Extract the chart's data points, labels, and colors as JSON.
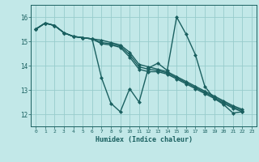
{
  "background_color": "#c2e8e8",
  "grid_color": "#98cccc",
  "line_color": "#1a6060",
  "xlabel": "Humidex (Indice chaleur)",
  "ylim": [
    11.5,
    16.5
  ],
  "xlim": [
    -0.5,
    23.5
  ],
  "yticks": [
    12,
    13,
    14,
    15,
    16
  ],
  "xtick_labels": [
    "0",
    "1",
    "2",
    "3",
    "4",
    "5",
    "6",
    "7",
    "8",
    "9",
    "10",
    "11",
    "12",
    "13",
    "14",
    "15",
    "16",
    "17",
    "18",
    "19",
    "20",
    "21",
    "22",
    "23"
  ],
  "series": [
    {
      "x": [
        0,
        1,
        2,
        3,
        4,
        5,
        6,
        7,
        8,
        9,
        10,
        11,
        12,
        13,
        14,
        15,
        16,
        17,
        18,
        19,
        20,
        21,
        22
      ],
      "y": [
        15.5,
        15.75,
        15.65,
        15.35,
        15.2,
        15.15,
        15.1,
        13.5,
        12.45,
        12.1,
        13.05,
        12.5,
        13.9,
        14.1,
        13.8,
        16.0,
        15.3,
        14.45,
        13.15,
        12.65,
        12.4,
        12.05,
        12.1
      ]
    },
    {
      "x": [
        0,
        1,
        2,
        3,
        4,
        5,
        6,
        7,
        8,
        9,
        10,
        11,
        12,
        13,
        14,
        15,
        16,
        17,
        18,
        19,
        20,
        21,
        22
      ],
      "y": [
        15.5,
        15.75,
        15.65,
        15.35,
        15.2,
        15.15,
        15.1,
        14.9,
        14.85,
        14.75,
        14.35,
        13.85,
        13.75,
        13.75,
        13.65,
        13.45,
        13.25,
        13.05,
        12.85,
        12.65,
        12.45,
        12.25,
        12.1
      ]
    },
    {
      "x": [
        0,
        1,
        2,
        3,
        4,
        5,
        6,
        7,
        8,
        9,
        10,
        11,
        12,
        13,
        14,
        15,
        16,
        17,
        18,
        19,
        20,
        21,
        22
      ],
      "y": [
        15.5,
        15.75,
        15.65,
        15.35,
        15.2,
        15.15,
        15.1,
        14.95,
        14.9,
        14.8,
        14.45,
        13.95,
        13.85,
        13.8,
        13.7,
        13.5,
        13.3,
        13.1,
        12.9,
        12.7,
        12.5,
        12.3,
        12.15
      ]
    },
    {
      "x": [
        0,
        1,
        2,
        3,
        4,
        5,
        6,
        7,
        8,
        9,
        10,
        11,
        12,
        13,
        14,
        15,
        16,
        17,
        18,
        19,
        20,
        21,
        22
      ],
      "y": [
        15.5,
        15.75,
        15.65,
        15.35,
        15.2,
        15.15,
        15.1,
        15.05,
        14.95,
        14.85,
        14.55,
        14.05,
        13.95,
        13.85,
        13.75,
        13.55,
        13.35,
        13.15,
        12.95,
        12.75,
        12.55,
        12.35,
        12.2
      ]
    }
  ]
}
